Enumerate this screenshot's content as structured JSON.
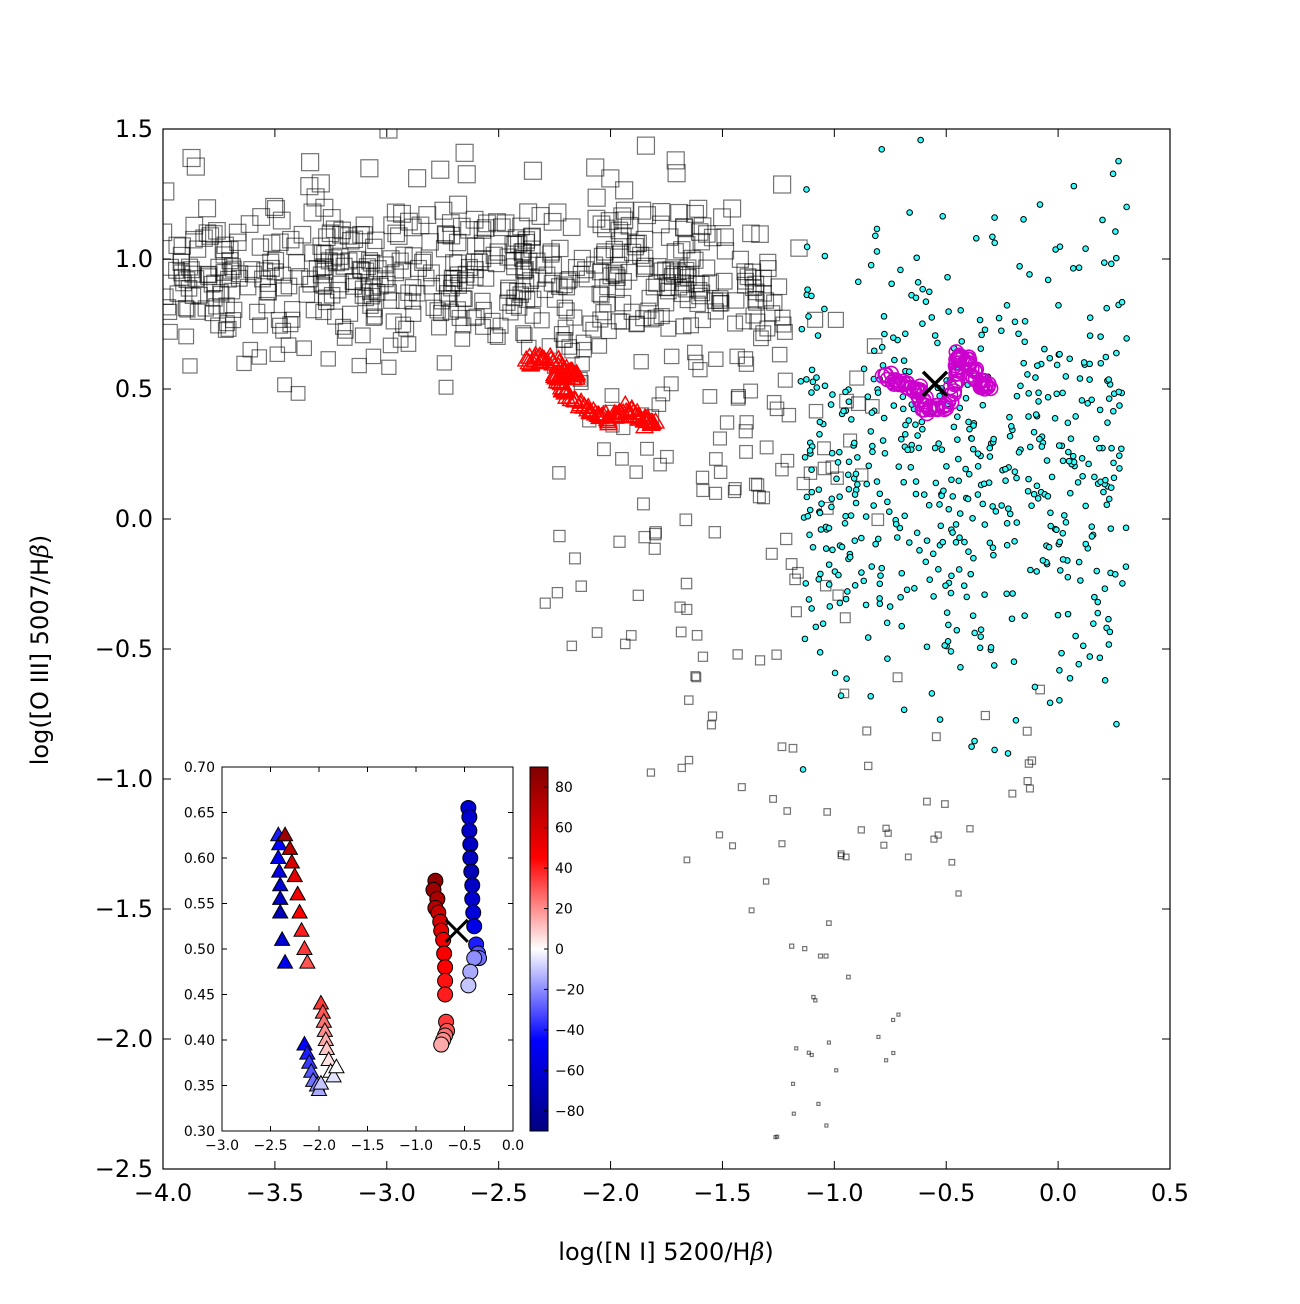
{
  "chart_data": {
    "type": "scatter",
    "title": "",
    "xlabel_parts": [
      "log([N I] 5200/H",
      "β",
      ")"
    ],
    "ylabel_parts": [
      "log([O III] 5007/H",
      "β",
      ")"
    ],
    "xlim": [
      -4.0,
      0.5
    ],
    "ylim": [
      -2.5,
      1.5
    ],
    "xticks": [
      "−4.0",
      "−3.5",
      "−3.0",
      "−2.5",
      "−2.0",
      "−1.5",
      "−1.0",
      "−0.5",
      "0.0",
      "0.5"
    ],
    "yticks": [
      "1.5",
      "1.0",
      "0.5",
      "0.0",
      "−0.5",
      "−1.0",
      "−1.5",
      "−2.0",
      "−2.5"
    ],
    "grid": false,
    "series": [
      {
        "marker": "open-square",
        "color": "#000000",
        "clusters": [
          {
            "x_range": [
              -4.0,
              -1.5
            ],
            "y_center": 0.93,
            "y_spread": 0.17,
            "count": 520
          },
          {
            "x_range": [
              -1.5,
              -1.2
            ],
            "y_center": 0.85,
            "y_spread": 0.15,
            "count": 40
          },
          {
            "x_range": [
              -2.1,
              -0.8
            ],
            "y_center": 0.3,
            "y_spread": 0.25,
            "count": 70
          },
          {
            "x_range": [
              -2.3,
              -0.9
            ],
            "y_center": -0.3,
            "y_spread": 0.25,
            "count": 40
          },
          {
            "x_range": [
              -1.85,
              -0.05
            ],
            "y_center": -1.05,
            "y_spread": 0.2,
            "count": 45
          },
          {
            "x_range": [
              -1.3,
              -0.7
            ],
            "y_center": -2.0,
            "y_spread": 0.25,
            "count": 25
          }
        ]
      },
      {
        "marker": "filled-circle",
        "color": "#33ffff",
        "edge": "#000000",
        "clusters": [
          {
            "x_range": [
              -1.15,
              0.32
            ],
            "y_center": 0.2,
            "y_spread": 0.45,
            "count": 560
          }
        ]
      },
      {
        "marker": "open-triangle",
        "color": "#ff0000",
        "path": [
          [
            -2.37,
            0.6
          ],
          [
            -2.3,
            0.62
          ],
          [
            -2.2,
            0.58
          ],
          [
            -2.15,
            0.55
          ],
          [
            -2.25,
            0.55
          ],
          [
            -2.2,
            0.48
          ],
          [
            -2.1,
            0.42
          ],
          [
            -2.0,
            0.38
          ],
          [
            -1.93,
            0.42
          ],
          [
            -1.85,
            0.38
          ],
          [
            -1.8,
            0.37
          ]
        ]
      },
      {
        "marker": "open-circle",
        "color": "#cc00cc",
        "path": [
          [
            -0.78,
            0.55
          ],
          [
            -0.7,
            0.52
          ],
          [
            -0.62,
            0.5
          ],
          [
            -0.6,
            0.42
          ],
          [
            -0.5,
            0.43
          ],
          [
            -0.45,
            0.55
          ],
          [
            -0.45,
            0.63
          ],
          [
            -0.4,
            0.6
          ],
          [
            -0.35,
            0.52
          ],
          [
            -0.3,
            0.5
          ]
        ]
      },
      {
        "marker": "x",
        "color": "#000000",
        "points": [
          [
            -0.55,
            0.52
          ]
        ]
      }
    ],
    "inset": {
      "xlim": [
        -3.0,
        0.0
      ],
      "ylim": [
        0.3,
        0.7
      ],
      "xticks": [
        "−3.0",
        "−2.5",
        "−2.0",
        "−1.5",
        "−1.0",
        "−0.5",
        "0.0"
      ],
      "yticks": [
        "0.70",
        "0.65",
        "0.60",
        "0.55",
        "0.50",
        "0.45",
        "0.40",
        "0.35",
        "0.30"
      ],
      "colorbar": {
        "range": [
          -90,
          90
        ],
        "ticks": [
          "80",
          "60",
          "40",
          "20",
          "0",
          "−20",
          "−40",
          "−60",
          "−80"
        ],
        "colors": [
          "#000080",
          "#0000ff",
          "#ffffff",
          "#ff0000",
          "#800000"
        ]
      },
      "triangles": [
        [
          -2.42,
          0.625,
          -40
        ],
        [
          -2.41,
          0.615,
          -45
        ],
        [
          -2.42,
          0.6,
          -50
        ],
        [
          -2.41,
          0.585,
          -55
        ],
        [
          -2.4,
          0.57,
          -60
        ],
        [
          -2.4,
          0.555,
          -65
        ],
        [
          -2.4,
          0.54,
          -70
        ],
        [
          -2.38,
          0.51,
          -60
        ],
        [
          -2.35,
          0.485,
          -50
        ],
        [
          -2.35,
          0.625,
          80
        ],
        [
          -2.3,
          0.61,
          70
        ],
        [
          -2.28,
          0.595,
          60
        ],
        [
          -2.25,
          0.58,
          55
        ],
        [
          -2.22,
          0.56,
          50
        ],
        [
          -2.2,
          0.54,
          45
        ],
        [
          -2.18,
          0.52,
          40
        ],
        [
          -2.15,
          0.5,
          35
        ],
        [
          -2.12,
          0.485,
          30
        ],
        [
          -2.15,
          0.395,
          -45
        ],
        [
          -2.12,
          0.385,
          -40
        ],
        [
          -2.1,
          0.375,
          -35
        ],
        [
          -2.08,
          0.365,
          -30
        ],
        [
          -2.06,
          0.355,
          -25
        ],
        [
          -2.02,
          0.35,
          -20
        ],
        [
          -2.0,
          0.345,
          -15
        ],
        [
          -1.98,
          0.352,
          -10
        ],
        [
          -1.98,
          0.44,
          35
        ],
        [
          -1.96,
          0.43,
          30
        ],
        [
          -1.95,
          0.42,
          25
        ],
        [
          -1.94,
          0.41,
          20
        ],
        [
          -1.93,
          0.4,
          15
        ],
        [
          -1.92,
          0.39,
          10
        ],
        [
          -1.9,
          0.378,
          5
        ],
        [
          -1.88,
          0.365,
          0
        ],
        [
          -1.85,
          0.36,
          -5
        ],
        [
          -1.82,
          0.37,
          0
        ]
      ],
      "circles": [
        [
          -0.8,
          0.575,
          85
        ],
        [
          -0.82,
          0.565,
          80
        ],
        [
          -0.78,
          0.555,
          75
        ],
        [
          -0.8,
          0.545,
          70
        ],
        [
          -0.77,
          0.54,
          65
        ],
        [
          -0.75,
          0.53,
          60
        ],
        [
          -0.74,
          0.52,
          55
        ],
        [
          -0.72,
          0.51,
          50
        ],
        [
          -0.71,
          0.495,
          48
        ],
        [
          -0.7,
          0.48,
          45
        ],
        [
          -0.7,
          0.465,
          42
        ],
        [
          -0.7,
          0.45,
          40
        ],
        [
          -0.69,
          0.42,
          35
        ],
        [
          -0.68,
          0.41,
          30
        ],
        [
          -0.7,
          0.405,
          25
        ],
        [
          -0.72,
          0.4,
          20
        ],
        [
          -0.74,
          0.395,
          15
        ],
        [
          -0.46,
          0.655,
          -60
        ],
        [
          -0.45,
          0.645,
          -62
        ],
        [
          -0.45,
          0.63,
          -64
        ],
        [
          -0.44,
          0.615,
          -66
        ],
        [
          -0.44,
          0.6,
          -68
        ],
        [
          -0.43,
          0.585,
          -70
        ],
        [
          -0.42,
          0.57,
          -66
        ],
        [
          -0.42,
          0.555,
          -62
        ],
        [
          -0.41,
          0.54,
          -58
        ],
        [
          -0.4,
          0.525,
          -54
        ],
        [
          -0.38,
          0.505,
          -40
        ],
        [
          -0.36,
          0.495,
          -30
        ],
        [
          -0.35,
          0.49,
          -25
        ],
        [
          -0.4,
          0.49,
          -20
        ],
        [
          -0.44,
          0.475,
          -15
        ],
        [
          -0.46,
          0.46,
          -10
        ]
      ],
      "x_marker": [
        -0.58,
        0.52
      ]
    }
  }
}
